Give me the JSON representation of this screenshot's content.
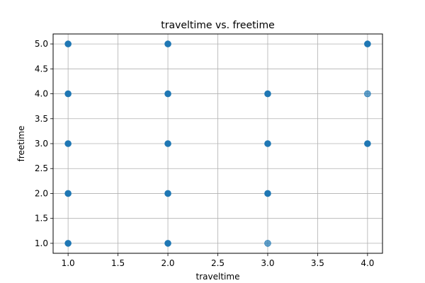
{
  "chart_data": {
    "type": "scatter",
    "title": "traveltime vs. freetime",
    "xlabel": "traveltime",
    "ylabel": "freetime",
    "xlim": [
      0.85,
      4.15
    ],
    "ylim": [
      0.8,
      5.2
    ],
    "xticks": [
      "1.0",
      "1.5",
      "2.0",
      "2.5",
      "3.0",
      "3.5",
      "4.0"
    ],
    "yticks": [
      "1.0",
      "1.5",
      "2.0",
      "2.5",
      "3.0",
      "3.5",
      "4.0",
      "4.5",
      "5.0"
    ],
    "grid": true,
    "point_color": "#1f77b4",
    "points": [
      {
        "x": 1,
        "y": 1,
        "density": "high"
      },
      {
        "x": 1,
        "y": 2,
        "density": "high"
      },
      {
        "x": 1,
        "y": 3,
        "density": "high"
      },
      {
        "x": 1,
        "y": 4,
        "density": "high"
      },
      {
        "x": 1,
        "y": 5,
        "density": "high"
      },
      {
        "x": 2,
        "y": 1,
        "density": "high"
      },
      {
        "x": 2,
        "y": 2,
        "density": "high"
      },
      {
        "x": 2,
        "y": 3,
        "density": "high"
      },
      {
        "x": 2,
        "y": 4,
        "density": "high"
      },
      {
        "x": 2,
        "y": 5,
        "density": "high"
      },
      {
        "x": 3,
        "y": 1,
        "density": "low"
      },
      {
        "x": 3,
        "y": 2,
        "density": "high"
      },
      {
        "x": 3,
        "y": 3,
        "density": "high"
      },
      {
        "x": 3,
        "y": 4,
        "density": "high"
      },
      {
        "x": 4,
        "y": 3,
        "density": "high"
      },
      {
        "x": 4,
        "y": 4,
        "density": "low"
      },
      {
        "x": 4,
        "y": 5,
        "density": "high"
      }
    ]
  }
}
